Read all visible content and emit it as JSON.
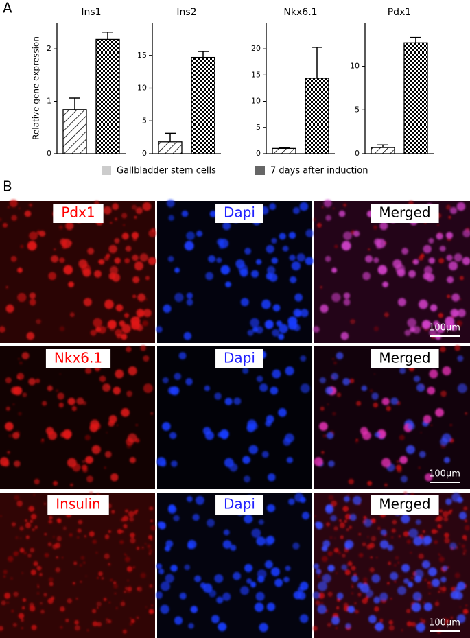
{
  "panel_a": {
    "label": "A"
  },
  "chart_data": [
    {
      "type": "bar",
      "title": "Ins1",
      "ylabel": "Relative gene expression",
      "categories": [
        null,
        null
      ],
      "values": [
        0.84,
        2.18
      ],
      "errors": [
        0.22,
        0.14
      ],
      "ylim": [
        0,
        2.5
      ],
      "yticks": [
        0,
        1,
        2
      ]
    },
    {
      "type": "bar",
      "title": "Ins2",
      "categories": [
        null,
        null
      ],
      "values": [
        1.8,
        14.7
      ],
      "errors": [
        1.3,
        0.9
      ],
      "ylim": [
        0,
        20
      ],
      "yticks": [
        0,
        5,
        10,
        15
      ]
    },
    {
      "type": "bar",
      "title": "Nkx6.1",
      "categories": [
        null,
        null
      ],
      "values": [
        1.0,
        14.4
      ],
      "errors": [
        0.15,
        5.9
      ],
      "ylim": [
        0,
        25
      ],
      "yticks": [
        0,
        5,
        10,
        15,
        20
      ]
    },
    {
      "type": "bar",
      "title": "Pdx1",
      "categories": [
        null,
        null
      ],
      "values": [
        0.7,
        12.7
      ],
      "errors": [
        0.3,
        0.6
      ],
      "ylim": [
        0,
        15
      ],
      "yticks": [
        0,
        5,
        10
      ]
    }
  ],
  "legend": [
    {
      "name": "Gallbladder stem cells",
      "color": "#cccccc"
    },
    {
      "name": "7 days after induction",
      "color": "#666666"
    }
  ],
  "panel_b": {
    "label": "B",
    "scale_bar": "100µm",
    "rows": [
      [
        {
          "text": "Pdx1",
          "color": "#ff0000"
        },
        {
          "text": "Dapi",
          "color": "#2222ff"
        },
        {
          "text": "Merged",
          "color": "#000000"
        }
      ],
      [
        {
          "text": "Nkx6.1",
          "color": "#ff0000"
        },
        {
          "text": "Dapi",
          "color": "#2222ff"
        },
        {
          "text": "Merged",
          "color": "#000000"
        }
      ],
      [
        {
          "text": "Insulin",
          "color": "#ff0000"
        },
        {
          "text": "Dapi",
          "color": "#2222ff"
        },
        {
          "text": "Merged",
          "color": "#000000"
        }
      ]
    ]
  }
}
